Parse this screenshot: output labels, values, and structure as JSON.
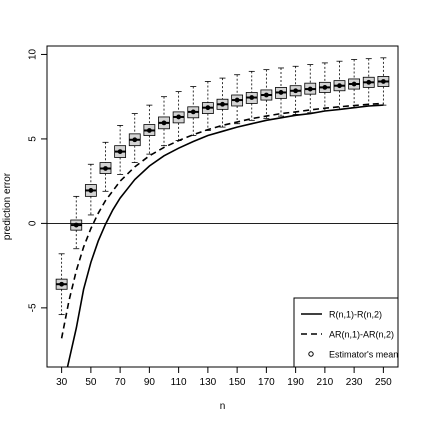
{
  "chart_data": {
    "type": "boxplot-with-lines",
    "title": "",
    "xlabel": "n",
    "ylabel": "prediction error",
    "xlim": [
      20,
      260
    ],
    "ylim": [
      -8.5,
      10.5
    ],
    "x_ticks": [
      30,
      50,
      70,
      90,
      110,
      130,
      150,
      170,
      190,
      210,
      230,
      250
    ],
    "y_ticks": [
      -5,
      0,
      5,
      10
    ],
    "reference_line_y": 0,
    "legend": {
      "position": "bottom-right",
      "entries": [
        {
          "label": "R(n,1)-R(n,2)",
          "style": "solid"
        },
        {
          "label": "AR(n,1)-AR(n,2)",
          "style": "dashed"
        },
        {
          "label": "Estimator's mean",
          "style": "point"
        }
      ]
    },
    "boxplots": [
      {
        "n": 30,
        "whisker_low": -5.4,
        "q1": -3.9,
        "median": -3.6,
        "q3": -3.3,
        "whisker_high": -1.8,
        "mean": -3.6
      },
      {
        "n": 40,
        "whisker_low": -1.5,
        "q1": -0.4,
        "median": -0.1,
        "q3": 0.2,
        "whisker_high": 1.6,
        "mean": -0.1
      },
      {
        "n": 50,
        "whisker_low": 0.5,
        "q1": 1.6,
        "median": 1.95,
        "q3": 2.3,
        "whisker_high": 3.5,
        "mean": 1.95
      },
      {
        "n": 60,
        "whisker_low": 1.9,
        "q1": 2.95,
        "median": 3.25,
        "q3": 3.6,
        "whisker_high": 4.8,
        "mean": 3.25
      },
      {
        "n": 70,
        "whisker_low": 2.9,
        "q1": 3.9,
        "median": 4.25,
        "q3": 4.6,
        "whisker_high": 5.8,
        "mean": 4.25
      },
      {
        "n": 80,
        "whisker_low": 3.6,
        "q1": 4.6,
        "median": 4.95,
        "q3": 5.3,
        "whisker_high": 6.5,
        "mean": 4.95
      },
      {
        "n": 90,
        "whisker_low": 4.1,
        "q1": 5.2,
        "median": 5.5,
        "q3": 5.85,
        "whisker_high": 7.0,
        "mean": 5.5
      },
      {
        "n": 100,
        "whisker_low": 4.6,
        "q1": 5.6,
        "median": 5.95,
        "q3": 6.3,
        "whisker_high": 7.5,
        "mean": 5.95
      },
      {
        "n": 110,
        "whisker_low": 4.9,
        "q1": 5.95,
        "median": 6.3,
        "q3": 6.6,
        "whisker_high": 7.8,
        "mean": 6.3
      },
      {
        "n": 120,
        "whisker_low": 5.2,
        "q1": 6.25,
        "median": 6.6,
        "q3": 6.9,
        "whisker_high": 8.1,
        "mean": 6.6
      },
      {
        "n": 130,
        "whisker_low": 5.5,
        "q1": 6.5,
        "median": 6.85,
        "q3": 7.15,
        "whisker_high": 8.4,
        "mean": 6.85
      },
      {
        "n": 140,
        "whisker_low": 5.7,
        "q1": 6.75,
        "median": 7.05,
        "q3": 7.35,
        "whisker_high": 8.6,
        "mean": 7.05
      },
      {
        "n": 150,
        "whisker_low": 5.9,
        "q1": 6.95,
        "median": 7.3,
        "q3": 7.6,
        "whisker_high": 8.8,
        "mean": 7.3
      },
      {
        "n": 160,
        "whisker_low": 6.1,
        "q1": 7.1,
        "median": 7.45,
        "q3": 7.75,
        "whisker_high": 9.0,
        "mean": 7.45
      },
      {
        "n": 170,
        "whisker_low": 6.2,
        "q1": 7.3,
        "median": 7.6,
        "q3": 7.9,
        "whisker_high": 9.1,
        "mean": 7.6
      },
      {
        "n": 180,
        "whisker_low": 6.35,
        "q1": 7.4,
        "median": 7.75,
        "q3": 8.05,
        "whisker_high": 9.2,
        "mean": 7.75
      },
      {
        "n": 190,
        "whisker_low": 6.45,
        "q1": 7.55,
        "median": 7.85,
        "q3": 8.15,
        "whisker_high": 9.3,
        "mean": 7.85
      },
      {
        "n": 200,
        "whisker_low": 6.55,
        "q1": 7.65,
        "median": 7.95,
        "q3": 8.3,
        "whisker_high": 9.4,
        "mean": 7.95
      },
      {
        "n": 210,
        "whisker_low": 6.65,
        "q1": 7.75,
        "median": 8.05,
        "q3": 8.35,
        "whisker_high": 9.5,
        "mean": 8.05
      },
      {
        "n": 220,
        "whisker_low": 6.75,
        "q1": 7.85,
        "median": 8.15,
        "q3": 8.45,
        "whisker_high": 9.6,
        "mean": 8.15
      },
      {
        "n": 230,
        "whisker_low": 6.85,
        "q1": 7.95,
        "median": 8.25,
        "q3": 8.55,
        "whisker_high": 9.7,
        "mean": 8.25
      },
      {
        "n": 240,
        "whisker_low": 6.95,
        "q1": 8.05,
        "median": 8.35,
        "q3": 8.65,
        "whisker_high": 9.75,
        "mean": 8.35
      },
      {
        "n": 250,
        "whisker_low": 7.0,
        "q1": 8.1,
        "median": 8.4,
        "q3": 8.7,
        "whisker_high": 9.8,
        "mean": 8.4
      }
    ],
    "series": [
      {
        "name": "R(n,1)-R(n,2)",
        "style": "solid",
        "x": [
          34,
          40,
          45,
          50,
          55,
          60,
          65,
          70,
          80,
          90,
          100,
          110,
          120,
          130,
          140,
          150,
          160,
          170,
          180,
          190,
          200,
          210,
          220,
          230,
          240,
          250
        ],
        "y": [
          -8.5,
          -6.2,
          -3.9,
          -2.3,
          -1.05,
          -0.05,
          0.8,
          1.5,
          2.6,
          3.4,
          4.0,
          4.45,
          4.85,
          5.2,
          5.45,
          5.7,
          5.9,
          6.1,
          6.25,
          6.4,
          6.5,
          6.65,
          6.75,
          6.85,
          6.95,
          7.0
        ]
      },
      {
        "name": "AR(n,1)-AR(n,2)",
        "style": "dashed",
        "x": [
          30,
          35,
          40,
          45,
          50,
          55,
          60,
          70,
          80,
          90,
          100,
          110,
          120,
          130,
          140,
          150,
          160,
          170,
          180,
          190,
          200,
          210,
          220,
          230,
          240,
          250
        ],
        "y": [
          -6.8,
          -4.6,
          -2.8,
          -1.4,
          -0.3,
          0.6,
          1.35,
          2.5,
          3.35,
          4.0,
          4.5,
          4.9,
          5.25,
          5.55,
          5.8,
          6.0,
          6.2,
          6.35,
          6.5,
          6.6,
          6.72,
          6.82,
          6.9,
          6.98,
          7.05,
          7.1
        ]
      }
    ]
  }
}
